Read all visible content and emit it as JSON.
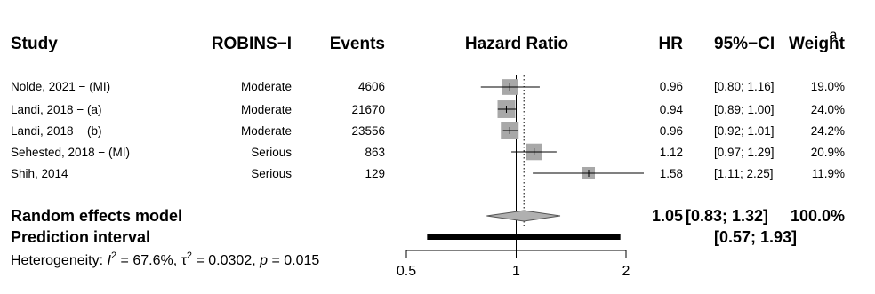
{
  "panel_label": "a",
  "headers": {
    "study": "Study",
    "robins": "ROBINS−I",
    "events": "Events",
    "hazard_ratio": "Hazard Ratio",
    "hr": "HR",
    "ci": "95%−CI",
    "weight": "Weight"
  },
  "studies": [
    {
      "name": "Nolde, 2021 − (MI)",
      "robins": "Moderate",
      "events": "4606",
      "hr_text": "0.96",
      "ci_text": "[0.80; 1.16]",
      "weight_text": "19.0%"
    },
    {
      "name": "Landi, 2018 − (a)",
      "robins": "Moderate",
      "events": "21670",
      "hr_text": "0.94",
      "ci_text": "[0.89; 1.00]",
      "weight_text": "24.0%"
    },
    {
      "name": "Landi, 2018 − (b)",
      "robins": "Moderate",
      "events": "23556",
      "hr_text": "0.96",
      "ci_text": "[0.92; 1.01]",
      "weight_text": "24.2%"
    },
    {
      "name": "Sehested, 2018 − (MI)",
      "robins": "Serious",
      "events": "863",
      "hr_text": "1.12",
      "ci_text": "[0.97; 1.29]",
      "weight_text": "20.9%"
    },
    {
      "name": "Shih, 2014",
      "robins": "Serious",
      "events": "129",
      "hr_text": "1.58",
      "ci_text": "[1.11; 2.25]",
      "weight_text": "11.9%"
    }
  ],
  "random_effects": {
    "label": "Random effects model",
    "hr_text": "1.05",
    "ci_text": "[0.83; 1.32]",
    "weight_text": "100.0%"
  },
  "prediction": {
    "label": "Prediction interval",
    "ci_text": "[0.57; 1.93]"
  },
  "heterogeneity": {
    "prefix": "Heterogeneity: ",
    "i2_symbol": "I",
    "i2_value": " = 67.6%, ",
    "tau_symbol": "τ",
    "tau_value": " = 0.0302, ",
    "p_symbol": "p",
    "p_value": " = 0.015"
  },
  "chart_data": {
    "type": "forest",
    "x_scale": "log",
    "xlim": [
      0.5,
      2
    ],
    "xticks": [
      0.5,
      1,
      2
    ],
    "xtick_labels": [
      "0.5",
      "1",
      "2"
    ],
    "reference_line": 1,
    "pooled_line": 1.05,
    "studies": [
      {
        "hr": 0.96,
        "lo": 0.8,
        "hi": 1.16,
        "weight": 19.0
      },
      {
        "hr": 0.94,
        "lo": 0.89,
        "hi": 1.0,
        "weight": 24.0
      },
      {
        "hr": 0.96,
        "lo": 0.92,
        "hi": 1.01,
        "weight": 24.2
      },
      {
        "hr": 1.12,
        "lo": 0.97,
        "hi": 1.29,
        "weight": 20.9
      },
      {
        "hr": 1.58,
        "lo": 1.11,
        "hi": 2.25,
        "weight": 11.9
      }
    ],
    "pooled": {
      "hr": 1.05,
      "lo": 0.83,
      "hi": 1.32
    },
    "prediction_interval": {
      "lo": 0.57,
      "hi": 1.93
    },
    "colors": {
      "box": "#a8a8a8",
      "diamond": "#b0b0b0",
      "line": "#000000"
    }
  }
}
